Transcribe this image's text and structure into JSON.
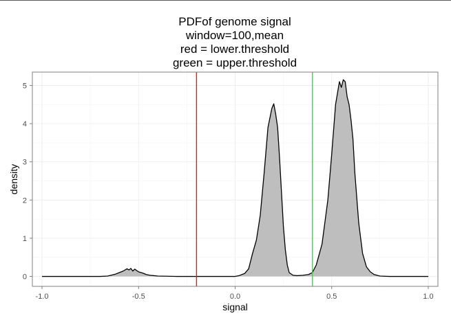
{
  "chart_data": {
    "type": "area",
    "title_lines": [
      "PDFof genome signal",
      "window=100,mean",
      "red = lower.threshold",
      "green = upper.threshold"
    ],
    "xlabel": "signal",
    "ylabel": "density",
    "xlim": [
      -1.05,
      1.05
    ],
    "ylim": [
      -0.26,
      5.35
    ],
    "x_ticks": [
      -1.0,
      -0.5,
      0.0,
      0.5,
      1.0
    ],
    "x_tick_labels": [
      "-1.0",
      "-0.5",
      "0.0",
      "0.5",
      "1.0"
    ],
    "y_ticks": [
      0,
      1,
      2,
      3,
      4,
      5
    ],
    "y_tick_labels": [
      "0",
      "1",
      "2",
      "3",
      "4",
      "5"
    ],
    "grid": true,
    "density_curve": {
      "x": [
        -1.0,
        -0.7,
        -0.66,
        -0.62,
        -0.6,
        -0.58,
        -0.56,
        -0.55,
        -0.54,
        -0.53,
        -0.52,
        -0.5,
        -0.48,
        -0.46,
        -0.44,
        -0.42,
        -0.4,
        -0.3,
        -0.1,
        0.0,
        0.02,
        0.05,
        0.07,
        0.09,
        0.11,
        0.13,
        0.15,
        0.17,
        0.19,
        0.2,
        0.21,
        0.22,
        0.23,
        0.24,
        0.25,
        0.26,
        0.27,
        0.28,
        0.3,
        0.32,
        0.35,
        0.38,
        0.4,
        0.42,
        0.45,
        0.48,
        0.5,
        0.52,
        0.54,
        0.55,
        0.56,
        0.57,
        0.58,
        0.59,
        0.6,
        0.61,
        0.62,
        0.64,
        0.66,
        0.68,
        0.7,
        0.72,
        0.75,
        0.8,
        1.0
      ],
      "y": [
        0,
        0,
        0.01,
        0.06,
        0.1,
        0.14,
        0.2,
        0.17,
        0.21,
        0.14,
        0.19,
        0.12,
        0.09,
        0.05,
        0.03,
        0.02,
        0.01,
        0,
        0,
        0,
        0.02,
        0.08,
        0.2,
        0.6,
        0.95,
        1.6,
        2.7,
        3.9,
        4.4,
        4.52,
        4.25,
        3.9,
        3.1,
        2.2,
        1.3,
        0.7,
        0.3,
        0.1,
        0.03,
        0.02,
        0.03,
        0.05,
        0.1,
        0.3,
        0.85,
        2.0,
        3.2,
        4.5,
        5.1,
        4.95,
        5.15,
        5.1,
        4.7,
        4.5,
        4.1,
        3.6,
        2.7,
        1.4,
        0.6,
        0.25,
        0.12,
        0.05,
        0.01,
        0,
        0
      ]
    },
    "vlines": [
      {
        "x": -0.2,
        "color": "#e31a1c"
      },
      {
        "x": 0.4,
        "color": "#33dd33"
      }
    ],
    "fill_color": "#bebebe",
    "line_color": "#000000"
  }
}
